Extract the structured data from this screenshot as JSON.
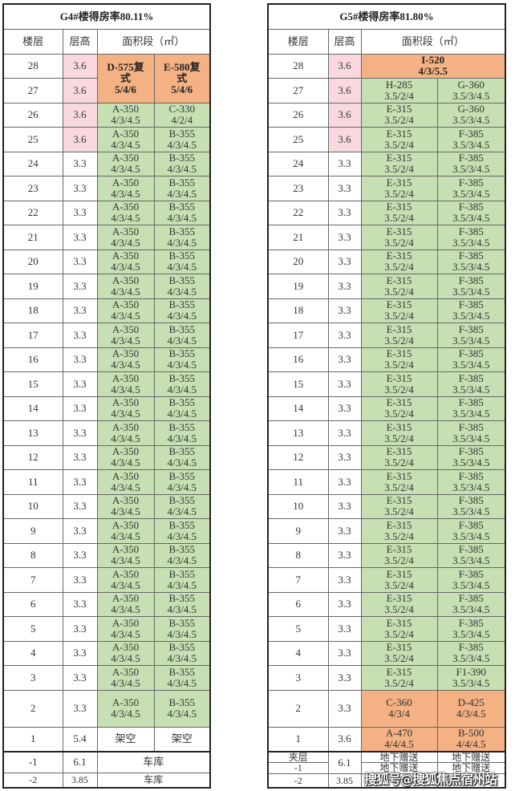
{
  "colors": {
    "pink": "#f9d9dd",
    "green": "#c6e0b4",
    "orange": "#f4b183"
  },
  "watermark": "搜狐号@搜狐焦点宿州站",
  "left": {
    "title": "G4#楼得房率80.11%",
    "headers": [
      "楼层",
      "层高",
      "面积段（㎡）"
    ],
    "rows": [
      {
        "cells": [
          {
            "t": "28"
          },
          {
            "t": "3.6",
            "c": "pink"
          },
          {
            "t": "D-575复\n式\n5/4/6",
            "c": "orange bold",
            "rs": 2
          },
          {
            "t": "E-580复\n式\n5/4/6",
            "c": "orange bold",
            "rs": 2
          }
        ]
      },
      {
        "cells": [
          {
            "t": "27"
          },
          {
            "t": "3.6",
            "c": "pink"
          }
        ]
      },
      {
        "cells": [
          {
            "t": "26"
          },
          {
            "t": "3.6",
            "c": "pink"
          },
          {
            "t": "A-350\n4/3/4.5",
            "c": "green"
          },
          {
            "t": "C-330\n4/2/4",
            "c": "green"
          }
        ]
      },
      {
        "cells": [
          {
            "t": "25"
          },
          {
            "t": "3.6",
            "c": "pink"
          },
          {
            "t": "A-350\n4/3/4.5",
            "c": "green"
          },
          {
            "t": "B-355\n4/3/4.5",
            "c": "green"
          }
        ]
      },
      {
        "cells": [
          {
            "t": "24"
          },
          {
            "t": "3.3"
          },
          {
            "t": "A-350\n4/3/4.5",
            "c": "green"
          },
          {
            "t": "B-355\n4/3/4.5",
            "c": "green"
          }
        ]
      },
      {
        "cells": [
          {
            "t": "23"
          },
          {
            "t": "3.3"
          },
          {
            "t": "A-350\n4/3/4.5",
            "c": "green"
          },
          {
            "t": "B-355\n4/3/4.5",
            "c": "green"
          }
        ]
      },
      {
        "cells": [
          {
            "t": "22"
          },
          {
            "t": "3.3"
          },
          {
            "t": "A-350\n4/3/4.5",
            "c": "green"
          },
          {
            "t": "B-355\n4/3/4.5",
            "c": "green"
          }
        ]
      },
      {
        "cells": [
          {
            "t": "21"
          },
          {
            "t": "3.3"
          },
          {
            "t": "A-350\n4/3/4.5",
            "c": "green"
          },
          {
            "t": "B-355\n4/3/4.5",
            "c": "green"
          }
        ]
      },
      {
        "cells": [
          {
            "t": "20"
          },
          {
            "t": "3.3"
          },
          {
            "t": "A-350\n4/3/4.5",
            "c": "green"
          },
          {
            "t": "B-355\n4/3/4.5",
            "c": "green"
          }
        ]
      },
      {
        "cells": [
          {
            "t": "19"
          },
          {
            "t": "3.3"
          },
          {
            "t": "A-350\n4/3/4.5",
            "c": "green"
          },
          {
            "t": "B-355\n4/3/4.5",
            "c": "green"
          }
        ]
      },
      {
        "cells": [
          {
            "t": "18"
          },
          {
            "t": "3.3"
          },
          {
            "t": "A-350\n4/3/4.5",
            "c": "green"
          },
          {
            "t": "B-355\n4/3/4.5",
            "c": "green"
          }
        ]
      },
      {
        "cells": [
          {
            "t": "17"
          },
          {
            "t": "3.3"
          },
          {
            "t": "A-350\n4/3/4.5",
            "c": "green"
          },
          {
            "t": "B-355\n4/3/4.5",
            "c": "green"
          }
        ]
      },
      {
        "cells": [
          {
            "t": "16"
          },
          {
            "t": "3.3"
          },
          {
            "t": "A-350\n4/3/4.5",
            "c": "green"
          },
          {
            "t": "B-355\n4/3/4.5",
            "c": "green"
          }
        ]
      },
      {
        "cells": [
          {
            "t": "15"
          },
          {
            "t": "3.3"
          },
          {
            "t": "A-350\n4/3/4.5",
            "c": "green"
          },
          {
            "t": "B-355\n4/3/4.5",
            "c": "green"
          }
        ]
      },
      {
        "cells": [
          {
            "t": "14"
          },
          {
            "t": "3.3"
          },
          {
            "t": "A-350\n4/3/4.5",
            "c": "green"
          },
          {
            "t": "B-355\n4/3/4.5",
            "c": "green"
          }
        ]
      },
      {
        "cells": [
          {
            "t": "13"
          },
          {
            "t": "3.3"
          },
          {
            "t": "A-350\n4/3/4.5",
            "c": "green"
          },
          {
            "t": "B-355\n4/3/4.5",
            "c": "green"
          }
        ]
      },
      {
        "cells": [
          {
            "t": "12"
          },
          {
            "t": "3.3"
          },
          {
            "t": "A-350\n4/3/4.5",
            "c": "green"
          },
          {
            "t": "B-355\n4/3/4.5",
            "c": "green"
          }
        ]
      },
      {
        "cells": [
          {
            "t": "11"
          },
          {
            "t": "3.3"
          },
          {
            "t": "A-350\n4/3/4.5",
            "c": "green"
          },
          {
            "t": "B-355\n4/3/4.5",
            "c": "green"
          }
        ]
      },
      {
        "cells": [
          {
            "t": "10"
          },
          {
            "t": "3.3"
          },
          {
            "t": "A-350\n4/3/4.5",
            "c": "green"
          },
          {
            "t": "B-355\n4/3/4.5",
            "c": "green"
          }
        ]
      },
      {
        "cells": [
          {
            "t": "9"
          },
          {
            "t": "3.3"
          },
          {
            "t": "A-350\n4/3/4.5",
            "c": "green"
          },
          {
            "t": "B-355\n4/3/4.5",
            "c": "green"
          }
        ]
      },
      {
        "cells": [
          {
            "t": "8"
          },
          {
            "t": "3.3"
          },
          {
            "t": "A-350\n4/3/4.5",
            "c": "green"
          },
          {
            "t": "B-355\n4/3/4.5",
            "c": "green"
          }
        ]
      },
      {
        "cells": [
          {
            "t": "7"
          },
          {
            "t": "3.3"
          },
          {
            "t": "A-350\n4/3/4.5",
            "c": "green"
          },
          {
            "t": "B-355\n4/3/4.5",
            "c": "green"
          }
        ]
      },
      {
        "cells": [
          {
            "t": "6"
          },
          {
            "t": "3.3"
          },
          {
            "t": "A-350\n4/3/4.5",
            "c": "green"
          },
          {
            "t": "B-355\n4/3/4.5",
            "c": "green"
          }
        ]
      },
      {
        "cells": [
          {
            "t": "5"
          },
          {
            "t": "3.3"
          },
          {
            "t": "A-350\n4/3/4.5",
            "c": "green"
          },
          {
            "t": "B-355\n4/3/4.5",
            "c": "green"
          }
        ]
      },
      {
        "cells": [
          {
            "t": "4"
          },
          {
            "t": "3.3"
          },
          {
            "t": "A-350\n4/3/4.5",
            "c": "green"
          },
          {
            "t": "B-355\n4/3/4.5",
            "c": "green"
          }
        ]
      },
      {
        "cells": [
          {
            "t": "3"
          },
          {
            "t": "3.3"
          },
          {
            "t": "A-350\n4/3/4.5",
            "c": "green"
          },
          {
            "t": "B-355\n4/3/4.5",
            "c": "green"
          }
        ]
      },
      {
        "h": "tall",
        "cells": [
          {
            "t": "2"
          },
          {
            "t": "3.3"
          },
          {
            "t": "A-350\n4/3/4.5",
            "c": "green"
          },
          {
            "t": "B-355\n4/3/4.5",
            "c": "green"
          }
        ]
      },
      {
        "cells": [
          {
            "t": "1"
          },
          {
            "t": "5.4"
          },
          {
            "t": "架空"
          },
          {
            "t": "架空"
          }
        ]
      },
      {
        "h": "b1",
        "thick": true,
        "cells": [
          {
            "t": "-1"
          },
          {
            "t": "6.1"
          },
          {
            "t": "车库",
            "cs": 2
          }
        ]
      },
      {
        "h": "b2",
        "cells": [
          {
            "t": "-2",
            "c": "small"
          },
          {
            "t": "3.85",
            "c": "small"
          },
          {
            "t": "车库",
            "cs": 2,
            "c": "small"
          }
        ]
      }
    ]
  },
  "right": {
    "title": "G5#楼得房率81.80%",
    "headers": [
      "楼层",
      "层高",
      "面积段（㎡）"
    ],
    "rows": [
      {
        "cells": [
          {
            "t": "28"
          },
          {
            "t": "3.6",
            "c": "pink"
          },
          {
            "t": "I-520\n4/3/5.5",
            "c": "orange bold",
            "cs": 2
          }
        ]
      },
      {
        "cells": [
          {
            "t": "27"
          },
          {
            "t": "3.6",
            "c": "pink"
          },
          {
            "t": "H-285\n3.5/2/4",
            "c": "green"
          },
          {
            "t": "G-360\n3.5/3/4.5",
            "c": "green"
          }
        ]
      },
      {
        "cells": [
          {
            "t": "26"
          },
          {
            "t": "3.6",
            "c": "pink"
          },
          {
            "t": "E-315\n3.5/2/4",
            "c": "green"
          },
          {
            "t": "G-360\n3.5/3/4.5",
            "c": "green"
          }
        ]
      },
      {
        "cells": [
          {
            "t": "25"
          },
          {
            "t": "3.6",
            "c": "pink"
          },
          {
            "t": "E-315\n3.5/2/4",
            "c": "green"
          },
          {
            "t": "F-385\n3.5/3/4.5",
            "c": "green"
          }
        ]
      },
      {
        "cells": [
          {
            "t": "24"
          },
          {
            "t": "3.3"
          },
          {
            "t": "E-315\n3.5/2/4",
            "c": "green"
          },
          {
            "t": "F-385\n3.5/3/4.5",
            "c": "green"
          }
        ]
      },
      {
        "cells": [
          {
            "t": "23"
          },
          {
            "t": "3.3"
          },
          {
            "t": "E-315\n3.5/2/4",
            "c": "green"
          },
          {
            "t": "F-385\n3.5/3/4.5",
            "c": "green"
          }
        ]
      },
      {
        "cells": [
          {
            "t": "22"
          },
          {
            "t": "3.3"
          },
          {
            "t": "E-315\n3.5/2/4",
            "c": "green"
          },
          {
            "t": "F-385\n3.5/3/4.5",
            "c": "green"
          }
        ]
      },
      {
        "cells": [
          {
            "t": "21"
          },
          {
            "t": "3.3"
          },
          {
            "t": "E-315\n3.5/2/4",
            "c": "green"
          },
          {
            "t": "F-385\n3.5/3/4.5",
            "c": "green"
          }
        ]
      },
      {
        "cells": [
          {
            "t": "20"
          },
          {
            "t": "3.3"
          },
          {
            "t": "E-315\n3.5/2/4",
            "c": "green"
          },
          {
            "t": "F-385\n3.5/3/4.5",
            "c": "green"
          }
        ]
      },
      {
        "cells": [
          {
            "t": "19"
          },
          {
            "t": "3.3"
          },
          {
            "t": "E-315\n3.5/2/4",
            "c": "green"
          },
          {
            "t": "F-385\n3.5/3/4.5",
            "c": "green"
          }
        ]
      },
      {
        "cells": [
          {
            "t": "18"
          },
          {
            "t": "3.3"
          },
          {
            "t": "E-315\n3.5/2/4",
            "c": "green"
          },
          {
            "t": "F-385\n3.5/3/4.5",
            "c": "green"
          }
        ]
      },
      {
        "cells": [
          {
            "t": "17"
          },
          {
            "t": "3.3"
          },
          {
            "t": "E-315\n3.5/2/4",
            "c": "green"
          },
          {
            "t": "F-385\n3.5/3/4.5",
            "c": "green"
          }
        ]
      },
      {
        "cells": [
          {
            "t": "16"
          },
          {
            "t": "3.3"
          },
          {
            "t": "E-315\n3.5/2/4",
            "c": "green"
          },
          {
            "t": "F-385\n3.5/3/4.5",
            "c": "green"
          }
        ]
      },
      {
        "cells": [
          {
            "t": "15"
          },
          {
            "t": "3.3"
          },
          {
            "t": "E-315\n3.5/2/4",
            "c": "green"
          },
          {
            "t": "F-385\n3.5/3/4.5",
            "c": "green"
          }
        ]
      },
      {
        "cells": [
          {
            "t": "14"
          },
          {
            "t": "3.3"
          },
          {
            "t": "E-315\n3.5/2/4",
            "c": "green"
          },
          {
            "t": "F-385\n3.5/3/4.5",
            "c": "green"
          }
        ]
      },
      {
        "cells": [
          {
            "t": "13"
          },
          {
            "t": "3.3"
          },
          {
            "t": "E-315\n3.5/2/4",
            "c": "green"
          },
          {
            "t": "F-385\n3.5/3/4.5",
            "c": "green"
          }
        ]
      },
      {
        "cells": [
          {
            "t": "12"
          },
          {
            "t": "3.3"
          },
          {
            "t": "E-315\n3.5/2/4",
            "c": "green"
          },
          {
            "t": "F-385\n3.5/3/4.5",
            "c": "green"
          }
        ]
      },
      {
        "cells": [
          {
            "t": "11"
          },
          {
            "t": "3.3"
          },
          {
            "t": "E-315\n3.5/2/4",
            "c": "green"
          },
          {
            "t": "F-385\n3.5/3/4.5",
            "c": "green"
          }
        ]
      },
      {
        "cells": [
          {
            "t": "10"
          },
          {
            "t": "3.3"
          },
          {
            "t": "E-315\n3.5/2/4",
            "c": "green"
          },
          {
            "t": "F-385\n3.5/3/4.5",
            "c": "green"
          }
        ]
      },
      {
        "cells": [
          {
            "t": "9"
          },
          {
            "t": "3.3"
          },
          {
            "t": "E-315\n3.5/2/4",
            "c": "green"
          },
          {
            "t": "F-385\n3.5/3/4.5",
            "c": "green"
          }
        ]
      },
      {
        "cells": [
          {
            "t": "8"
          },
          {
            "t": "3.3"
          },
          {
            "t": "E-315\n3.5/2/4",
            "c": "green"
          },
          {
            "t": "F-385\n3.5/3/4.5",
            "c": "green"
          }
        ]
      },
      {
        "cells": [
          {
            "t": "7"
          },
          {
            "t": "3.3"
          },
          {
            "t": "E-315\n3.5/2/4",
            "c": "green"
          },
          {
            "t": "F-385\n3.5/3/4.5",
            "c": "green"
          }
        ]
      },
      {
        "cells": [
          {
            "t": "6"
          },
          {
            "t": "3.3"
          },
          {
            "t": "E-315\n3.5/2/4",
            "c": "green"
          },
          {
            "t": "F-385\n3.5/3/4.5",
            "c": "green"
          }
        ]
      },
      {
        "cells": [
          {
            "t": "5"
          },
          {
            "t": "3.3"
          },
          {
            "t": "E-315\n3.5/2/4",
            "c": "green"
          },
          {
            "t": "F-385\n3.5/3/4.5",
            "c": "green"
          }
        ]
      },
      {
        "cells": [
          {
            "t": "4"
          },
          {
            "t": "3.3"
          },
          {
            "t": "E-315\n3.5/2/4",
            "c": "green"
          },
          {
            "t": "F-385\n3.5/3/4.5",
            "c": "green"
          }
        ]
      },
      {
        "cells": [
          {
            "t": "3"
          },
          {
            "t": "3.3"
          },
          {
            "t": "E-315\n3.5/2/4",
            "c": "green"
          },
          {
            "t": "F1-390\n3.5/3/4.5",
            "c": "green"
          }
        ]
      },
      {
        "h": "tall",
        "cells": [
          {
            "t": "2"
          },
          {
            "t": "3.3"
          },
          {
            "t": "C-360\n4/3/4",
            "c": "orange"
          },
          {
            "t": "D-425\n4/3/4.5",
            "c": "orange"
          }
        ]
      },
      {
        "cells": [
          {
            "t": "1"
          },
          {
            "t": "3.6"
          },
          {
            "t": "A-470\n4/4/4.5",
            "c": "orange"
          },
          {
            "t": "B-500\n4/4/4.5",
            "c": "orange"
          }
        ]
      },
      {
        "h": "m1",
        "thick": true,
        "cells": [
          {
            "t": "夹层",
            "c": "small"
          },
          {
            "t": "6.1",
            "rs": 2
          },
          {
            "t": "地下赠送",
            "c": "small"
          },
          {
            "t": "地下赠送",
            "c": "small"
          }
        ]
      },
      {
        "h": "m2",
        "cells": [
          {
            "t": "-1",
            "c": "small"
          },
          {
            "t": "地下赠送",
            "c": "small"
          },
          {
            "t": "地下赠送",
            "c": "small"
          }
        ]
      },
      {
        "h": "b2",
        "cells": [
          {
            "t": "-2",
            "c": "small"
          },
          {
            "t": "3.85",
            "c": "small"
          },
          {
            "t": "",
            "c": "small"
          },
          {
            "t": "",
            "c": "small"
          }
        ]
      }
    ]
  }
}
